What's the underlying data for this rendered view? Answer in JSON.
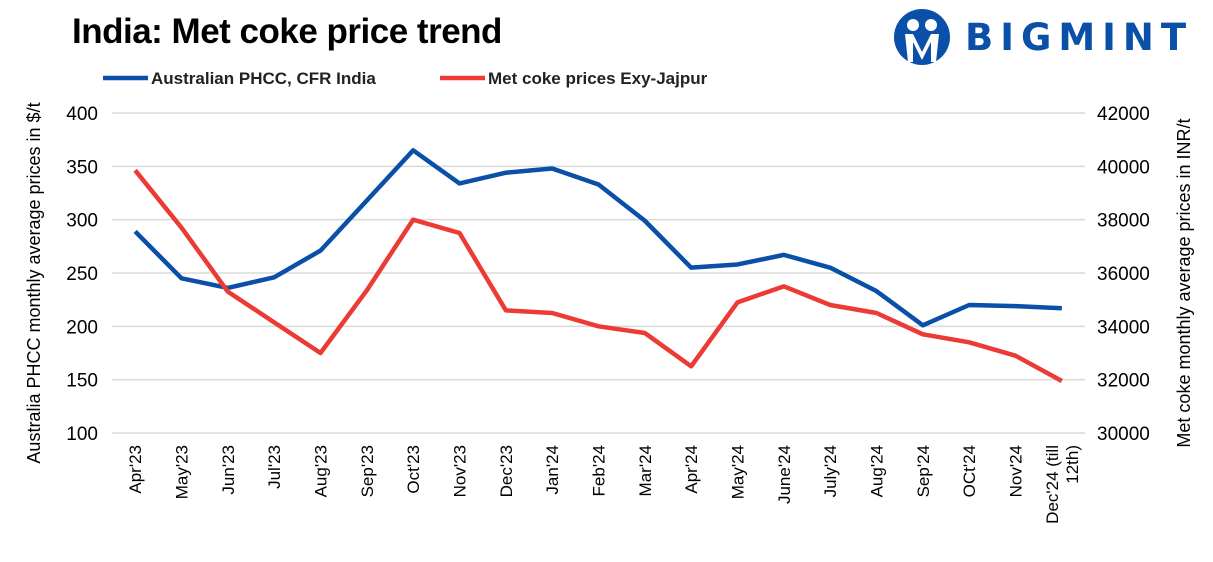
{
  "title": "India: Met coke price trend",
  "logo": {
    "text": "BIGMINT",
    "color": "#0a4fa8"
  },
  "chart_data": {
    "type": "line",
    "title": "India: Met coke price trend",
    "categories": [
      "Apr'23",
      "May'23",
      "Jun'23",
      "Jul'23",
      "Aug'23",
      "Sep'23",
      "Oct'23",
      "Nov'23",
      "Dec'23",
      "Jan'24",
      "Feb'24",
      "Mar'24",
      "Apr'24",
      "May'24",
      "June'24",
      "July'24",
      "Aug'24",
      "Sep'24",
      "OCt'24",
      "Nov'24",
      "Dec'24 (till 12th)"
    ],
    "ylabel": "Australia PHCC monthly average prices in $/t",
    "y2label": "Met coke monthly average prices in INR/t",
    "ylim": [
      100,
      400
    ],
    "yticks": [
      100,
      150,
      200,
      250,
      300,
      350,
      400
    ],
    "y2lim": [
      30000,
      42000
    ],
    "y2ticks": [
      30000,
      32000,
      34000,
      36000,
      38000,
      40000,
      42000
    ],
    "grid": true,
    "legend": "top-left",
    "series": [
      {
        "name": "Australian PHCC, CFR India",
        "axis": "left",
        "color": "#0a4fa8",
        "values": [
          289,
          245,
          236,
          246,
          271,
          318,
          365,
          334,
          344,
          348,
          333,
          299,
          255,
          258,
          267,
          255,
          233,
          201,
          220,
          219,
          217
        ]
      },
      {
        "name": "Met coke prices Exy-Jajpur",
        "axis": "right",
        "color": "#ec3a35",
        "values": [
          39850,
          37700,
          35300,
          34150,
          33000,
          35350,
          38000,
          37500,
          34600,
          34500,
          34000,
          33750,
          32500,
          34900,
          35500,
          34800,
          34500,
          33700,
          33400,
          32900,
          31950
        ]
      }
    ]
  }
}
